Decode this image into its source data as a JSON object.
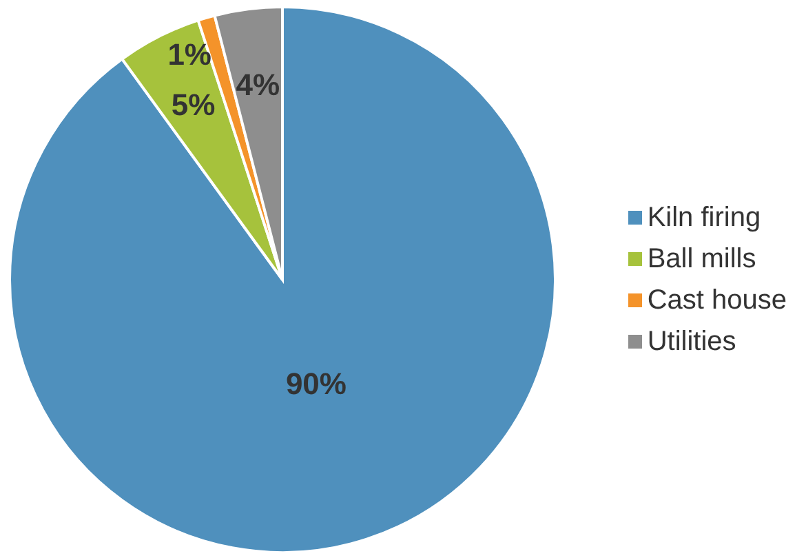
{
  "chart_data": {
    "type": "pie",
    "categories": [
      "Kiln firing",
      "Ball mills",
      "Cast house",
      "Utilities"
    ],
    "values": [
      90,
      5,
      1,
      4
    ],
    "value_labels": [
      "90%",
      "5%",
      "1%",
      "4%"
    ],
    "colors": [
      "#4f90bd",
      "#a6c23c",
      "#f4932a",
      "#8e8e8e"
    ],
    "legend": "right"
  }
}
